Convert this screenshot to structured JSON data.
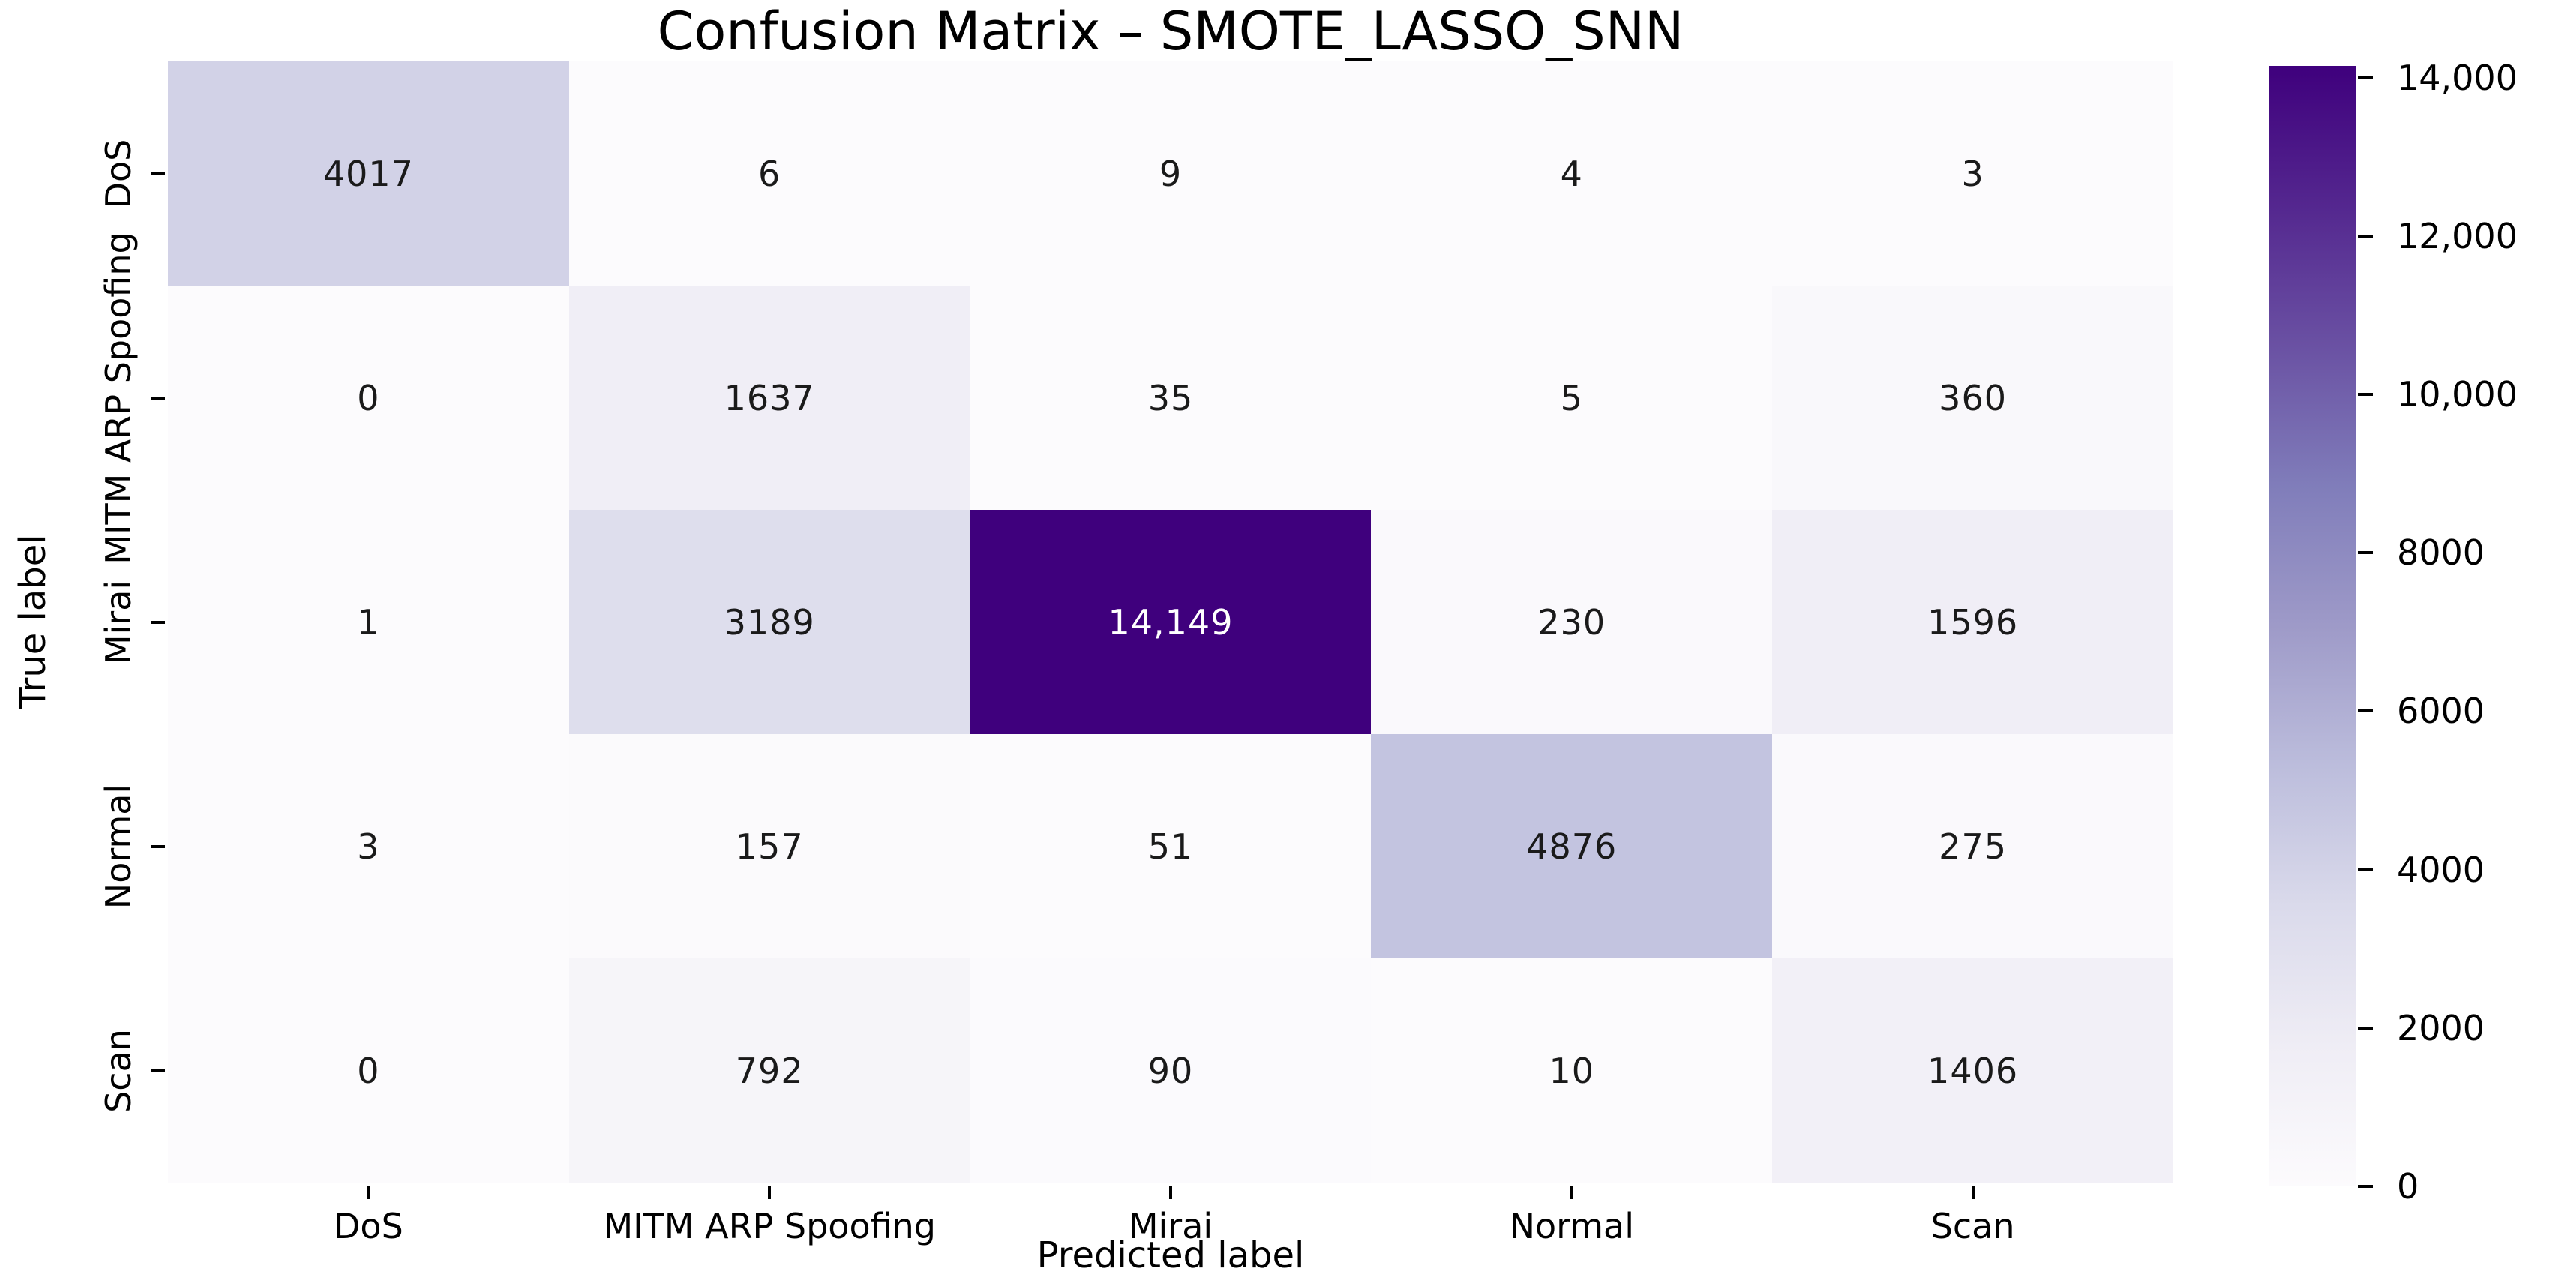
{
  "chart_data": {
    "type": "heatmap",
    "title": "Confusion Matrix – SMOTE_LASSO_SNN",
    "xlabel": "Predicted label",
    "ylabel": "True label",
    "x_categories": [
      "DoS",
      "MITM ARP Spoofing",
      "Mirai",
      "Normal",
      "Scan"
    ],
    "y_categories": [
      "DoS",
      "MITM ARP Spoofing",
      "Mirai",
      "Normal",
      "Scan"
    ],
    "matrix": [
      [
        4017,
        6,
        9,
        4,
        3
      ],
      [
        0,
        1637,
        35,
        5,
        360
      ],
      [
        1,
        3189,
        14149,
        230,
        1596
      ],
      [
        3,
        157,
        51,
        4876,
        275
      ],
      [
        0,
        792,
        90,
        10,
        1406
      ]
    ],
    "cell_labels": [
      [
        "4017",
        "6",
        "9",
        "4",
        "3"
      ],
      [
        "0",
        "1637",
        "35",
        "5",
        "360"
      ],
      [
        "1",
        "3189",
        "14,149",
        "230",
        "1596"
      ],
      [
        "3",
        "157",
        "51",
        "4876",
        "275"
      ],
      [
        "0",
        "792",
        "90",
        "10",
        "1406"
      ]
    ],
    "vmin": 0,
    "vmax": 14149,
    "grid": false,
    "colormap": {
      "name": "Purples",
      "anchors": [
        [
          252,
          251,
          253
        ],
        [
          239,
          237,
          245
        ],
        [
          218,
          218,
          235
        ],
        [
          188,
          189,
          220
        ],
        [
          158,
          154,
          200
        ],
        [
          128,
          125,
          186
        ],
        [
          106,
          81,
          163
        ],
        [
          84,
          39,
          143
        ],
        [
          63,
          0,
          125
        ]
      ],
      "dark_text_color": "#1a1a1a",
      "light_text_color": "#ffffff"
    },
    "colorbar": {
      "position": "right",
      "ticks": [
        {
          "value": 14000,
          "label": "14,000"
        },
        {
          "value": 12000,
          "label": "12,000"
        },
        {
          "value": 10000,
          "label": "10,000"
        },
        {
          "value": 8000,
          "label": "8000"
        },
        {
          "value": 6000,
          "label": "6000"
        },
        {
          "value": 4000,
          "label": "4000"
        },
        {
          "value": 2000,
          "label": "2000"
        },
        {
          "value": 0,
          "label": "0"
        }
      ]
    }
  }
}
